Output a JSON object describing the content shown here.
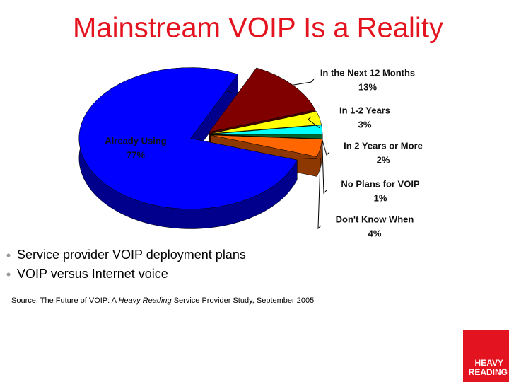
{
  "chart_data": {
    "type": "pie",
    "title": "Mainstream VOIP Is a Reality",
    "categories": [
      "In the Next 12 Months",
      "In 1-2 Years",
      "In 2 Years or More",
      "No Plans for VOIP",
      "Don't Know When",
      "Already Using"
    ],
    "values": [
      13,
      3,
      2,
      1,
      4,
      77
    ],
    "value_labels": [
      "13%",
      "3%",
      "2%",
      "1%",
      "4%",
      "77%"
    ],
    "colors": [
      "#800000",
      "#ffff00",
      "#00ffff",
      "#006633",
      "#ff6600",
      "#0000ff"
    ]
  },
  "bullets": [
    "Service provider VOIP deployment plans",
    "VOIP versus Internet voice"
  ],
  "source": [
    "Source: The Future of VOIP: A ",
    "Heavy Reading",
    " Service Provider Study, September 2005"
  ],
  "logo": [
    "HEAVY",
    "READING"
  ]
}
